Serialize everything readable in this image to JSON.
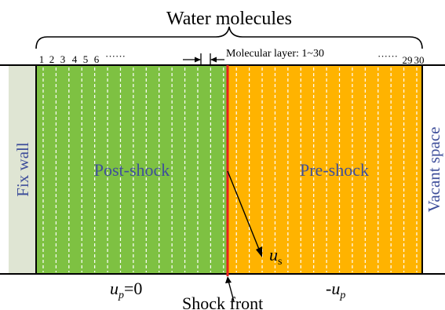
{
  "title": "Water molecules",
  "layer_numbers_left": [
    "1",
    "2",
    "3",
    "4",
    "5",
    "6"
  ],
  "layer_numbers_right": [
    "29",
    "30"
  ],
  "ellipsis": "······",
  "layer_range_label": "Molecular layer: 1~30",
  "regions": {
    "fix_wall": "Fix wall",
    "post_shock": "Post-shock",
    "pre_shock": "Pre-shock",
    "vacant_space": "Vacant space"
  },
  "velocities": {
    "post_u": "u",
    "post_sub": "p",
    "post_eq": "=0",
    "pre_minus": "-u",
    "pre_sub": "p",
    "shock_u": "u",
    "shock_sub": "s"
  },
  "shock_front_label": "Shock front",
  "colors": {
    "wall": "#dfe5d3",
    "post_shock": "#7ec142",
    "pre_shock": "#ffb300",
    "shock_line": "#e8211e",
    "region_text": "#3e4e9a",
    "dashed": "#ffffff"
  },
  "layer_count": 30
}
